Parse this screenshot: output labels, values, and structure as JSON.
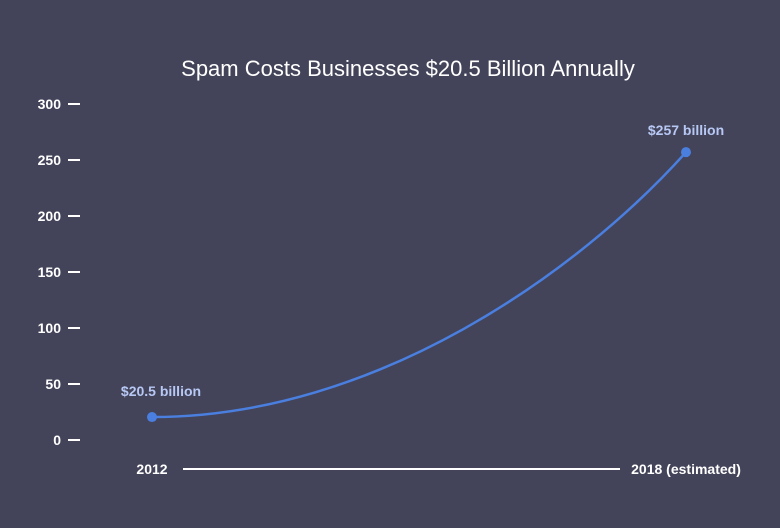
{
  "chart_data": {
    "type": "line",
    "title": "Spam Costs Businesses $20.5 Billion Annually",
    "x": [
      "2012",
      "2018 (estimated)"
    ],
    "values": [
      20.5,
      257
    ],
    "data_labels": [
      "$20.5 billion",
      "$257 billion"
    ],
    "yticks": [
      0,
      50,
      100,
      150,
      200,
      250,
      300
    ],
    "ylim": [
      0,
      300
    ],
    "xlabel": "",
    "ylabel": "",
    "grid": false,
    "line_color": "#4a7fe0",
    "point_color": "#4a7fe0",
    "label_color": "#b8c8f4",
    "background": "#43445a"
  }
}
